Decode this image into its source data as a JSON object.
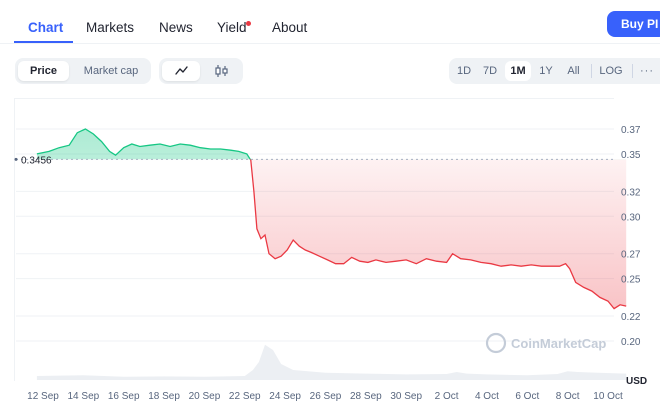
{
  "tabs": [
    {
      "label": "Chart",
      "active": true
    },
    {
      "label": "Markets",
      "active": false
    },
    {
      "label": "News",
      "active": false
    },
    {
      "label": "Yield",
      "active": false
    },
    {
      "label": "About",
      "active": false
    }
  ],
  "buy_button": {
    "label": "Buy PI"
  },
  "metric_toggle": {
    "options": [
      "Price",
      "Market cap"
    ],
    "selected": "Price"
  },
  "chart_type_toggle": {
    "options": [
      "line-chart-icon",
      "candlestick-icon"
    ],
    "selected": "line-chart-icon"
  },
  "range_buttons": {
    "options": [
      "1D",
      "7D",
      "1M",
      "1Y",
      "All",
      "LOG"
    ],
    "selected": "1M",
    "more_icon": "more-icon"
  },
  "colors": {
    "accent": "#3861fb",
    "up": "#16c784",
    "down": "#ea3943",
    "notification": "#ea3943"
  },
  "watermark": "CoinMarketCap",
  "chart_data": {
    "type": "line",
    "baseline": {
      "value": 0.3456,
      "label": "0.3456"
    },
    "ylim": [
      0.19,
      0.38
    ],
    "y_ticks": [
      "0.37",
      "0.35",
      "0.32",
      "0.30",
      "0.27",
      "0.25",
      "0.22",
      "0.20"
    ],
    "y_tick_values": [
      0.37,
      0.35,
      0.32,
      0.3,
      0.27,
      0.25,
      0.22,
      0.2
    ],
    "currency": "USD",
    "x_ticks": [
      "12 Sep",
      "14 Sep",
      "16 Sep",
      "18 Sep",
      "20 Sep",
      "22 Sep",
      "24 Sep",
      "26 Sep",
      "28 Sep",
      "30 Sep",
      "2 Oct",
      "4 Oct",
      "6 Oct",
      "8 Oct",
      "10 Oct"
    ],
    "x_tick_days": [
      0,
      2,
      4,
      6,
      8,
      10,
      12,
      14,
      16,
      18,
      20,
      22,
      24,
      26,
      28
    ],
    "series": [
      {
        "x": [
          -0.3,
          0.3,
          0.8,
          1.3,
          1.7,
          2.1,
          2.5,
          2.9,
          3.3,
          3.6,
          4.0,
          4.4,
          4.8,
          5.3,
          5.8,
          6.3,
          6.8,
          7.3,
          7.8,
          8.3,
          8.8,
          9.3,
          9.7,
          10.1,
          10.3,
          10.45,
          10.6,
          10.8,
          11.0,
          11.2,
          11.5,
          11.8,
          12.1,
          12.4,
          12.7,
          13.0,
          13.3,
          13.7,
          14.1,
          14.5,
          14.9,
          15.3,
          15.7,
          16.1,
          16.5,
          17.0,
          17.5,
          18.0,
          18.5,
          19.0,
          19.5,
          20.0,
          20.3,
          20.7,
          21.2,
          21.7,
          22.2,
          22.7,
          23.2,
          23.7,
          24.2,
          24.7,
          25.2,
          25.6,
          25.9,
          26.1,
          26.4,
          26.8,
          27.2,
          27.6,
          28.0,
          28.3,
          28.6,
          28.9
        ],
        "y": [
          0.35,
          0.352,
          0.355,
          0.357,
          0.367,
          0.37,
          0.366,
          0.36,
          0.352,
          0.349,
          0.355,
          0.358,
          0.356,
          0.357,
          0.358,
          0.356,
          0.358,
          0.357,
          0.355,
          0.354,
          0.354,
          0.353,
          0.352,
          0.35,
          0.345,
          0.32,
          0.29,
          0.282,
          0.285,
          0.27,
          0.266,
          0.268,
          0.273,
          0.281,
          0.276,
          0.273,
          0.271,
          0.268,
          0.265,
          0.262,
          0.262,
          0.267,
          0.264,
          0.263,
          0.265,
          0.263,
          0.264,
          0.265,
          0.262,
          0.266,
          0.264,
          0.263,
          0.27,
          0.266,
          0.265,
          0.263,
          0.262,
          0.26,
          0.261,
          0.26,
          0.261,
          0.26,
          0.26,
          0.26,
          0.262,
          0.258,
          0.247,
          0.243,
          0.24,
          0.235,
          0.232,
          0.226,
          0.229,
          0.228
        ]
      }
    ],
    "volume": {
      "x": [
        -0.3,
        2.0,
        4.0,
        6.0,
        8.0,
        10.0,
        10.4,
        10.7,
        11.0,
        11.4,
        11.8,
        12.4,
        14.0,
        16.0,
        18.0,
        20.0,
        20.5,
        21.0,
        22.0,
        24.0,
        25.5,
        26.0,
        26.5,
        27.5,
        28.9
      ],
      "v": [
        0.1,
        0.12,
        0.08,
        0.09,
        0.08,
        0.1,
        0.25,
        0.45,
        0.88,
        0.75,
        0.4,
        0.25,
        0.18,
        0.16,
        0.14,
        0.15,
        0.2,
        0.16,
        0.14,
        0.12,
        0.15,
        0.22,
        0.2,
        0.18,
        0.16
      ]
    }
  }
}
